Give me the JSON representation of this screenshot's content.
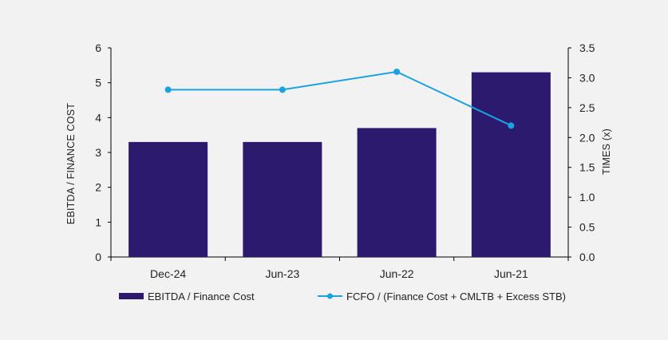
{
  "chart_data": {
    "type": "bar",
    "categories": [
      "Dec-24",
      "Jun-23",
      "Jun-22",
      "Jun-21"
    ],
    "series": [
      {
        "name": "EBITDA / Finance Cost",
        "type": "bar",
        "axis": "left",
        "values": [
          3.3,
          3.3,
          3.7,
          5.3
        ],
        "color": "#2b1a6e"
      },
      {
        "name": "FCFO / (Finance Cost + CMLTB + Excess STB)",
        "type": "line",
        "axis": "right",
        "values": [
          2.8,
          2.8,
          3.1,
          2.2
        ],
        "color": "#1aa3e0"
      }
    ],
    "ylabel": "EBITDA / FINANCE COST",
    "ylabel_right": "TIMES (x)",
    "ylim": [
      0,
      6
    ],
    "ylim_right": [
      0,
      3.5
    ],
    "yticks": [
      "0",
      "1",
      "2",
      "3",
      "4",
      "5",
      "6"
    ],
    "yticks_right": [
      "0.0",
      "0.5",
      "1.0",
      "1.5",
      "2.0",
      "2.5",
      "3.0",
      "3.5"
    ],
    "grid": false,
    "legend_position": "bottom"
  }
}
